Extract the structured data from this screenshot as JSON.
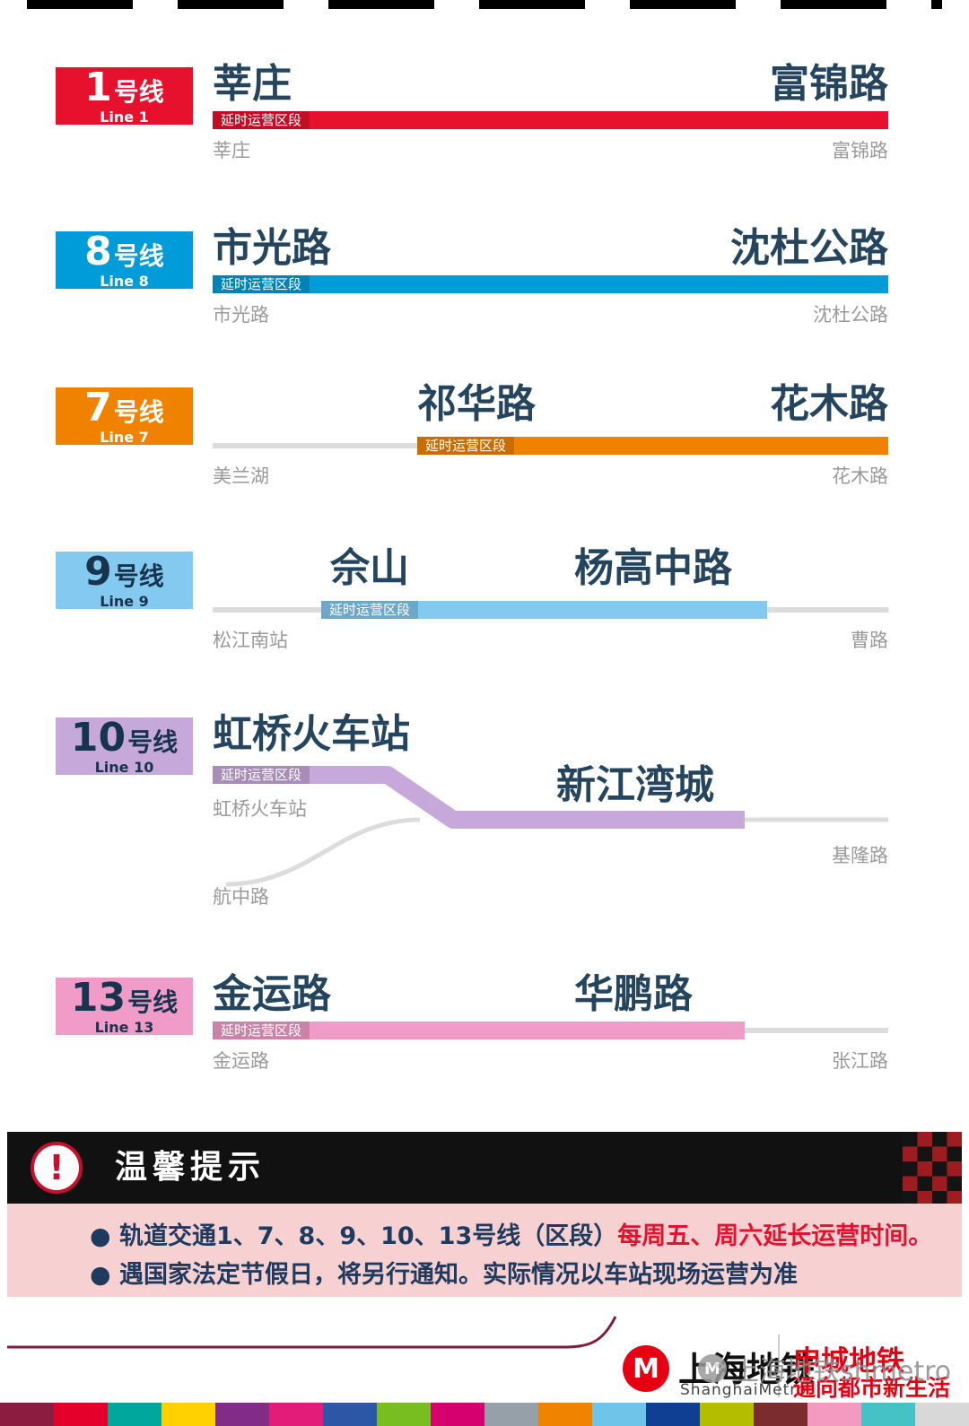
{
  "lines": [
    {
      "number": "1",
      "suffix": "号线",
      "en": "Line 1",
      "color": "#e8112d",
      "seg_label": "延时运营区段",
      "top_left": "莘庄",
      "top_right": "富锦路",
      "bottom_left": "莘庄",
      "bottom_right": "富锦路"
    },
    {
      "number": "8",
      "suffix": "号线",
      "en": "Line 8",
      "color": "#009bd9",
      "seg_label": "延时运营区段",
      "top_left": "市光路",
      "top_right": "沈杜公路",
      "bottom_left": "市光路",
      "bottom_right": "沈杜公路"
    },
    {
      "number": "7",
      "suffix": "号线",
      "en": "Line 7",
      "color": "#f08200",
      "seg_label": "延时运营区段",
      "top_left": "祁华路",
      "top_right": "花木路",
      "bottom_left": "美兰湖",
      "bottom_right": "花木路"
    },
    {
      "number": "9",
      "suffix": "号线",
      "en": "Line 9",
      "color": "#84c9ef",
      "seg_label": "延时运营区段",
      "top_left": "佘山",
      "top_right": "杨高中路",
      "bottom_left": "松江南站",
      "bottom_right": "曹路"
    },
    {
      "number": "10",
      "suffix": "号线",
      "en": "Line 10",
      "color": "#c7a8da",
      "seg_label": "延时运营区段",
      "top_main": "虹桥火车站",
      "top_branch_end": "新江湾城",
      "bottom_left": "虹桥火车站",
      "bottom_right": "基隆路",
      "branch_station": "航中路"
    },
    {
      "number": "13",
      "suffix": "号线",
      "en": "Line 13",
      "color": "#f19bc8",
      "seg_label": "延时运营区段",
      "top_left": "金运路",
      "top_right": "华鹏路",
      "bottom_left": "金运路",
      "bottom_right": "张江路"
    }
  ],
  "notice": {
    "title": "温馨提示",
    "icon": "!",
    "bullet1_prefix": "● 轨道交通1、7、8、9、10、13号线（区段）",
    "bullet1_highlight": "每周五、周六延长运营时间。",
    "bullet2": "● 遇国家法定节假日，将另行通知。实际情况以车站现场运营为准",
    "highlight_color": "#e8112d"
  },
  "footer": {
    "logo_m": "M",
    "logo_cn": "上海地铁",
    "logo_en": "ShanghaiMetro",
    "slogan_line1": "申城地铁",
    "slogan_line2": "通向都市新生活",
    "watermark": "上海地铁shmetro",
    "stripe_colors": [
      "#8c1d40",
      "#e4002b",
      "#00a79d",
      "#ffd100",
      "#822c88",
      "#e31c79",
      "#2c57a7",
      "#78be20",
      "#d6006e",
      "#95a0a9",
      "#f08300",
      "#6ec5e9",
      "#0f3f93",
      "#b4bd00",
      "#7b2c2f",
      "#f49ac1",
      "#45c2c5",
      "#d8d8d8"
    ]
  }
}
